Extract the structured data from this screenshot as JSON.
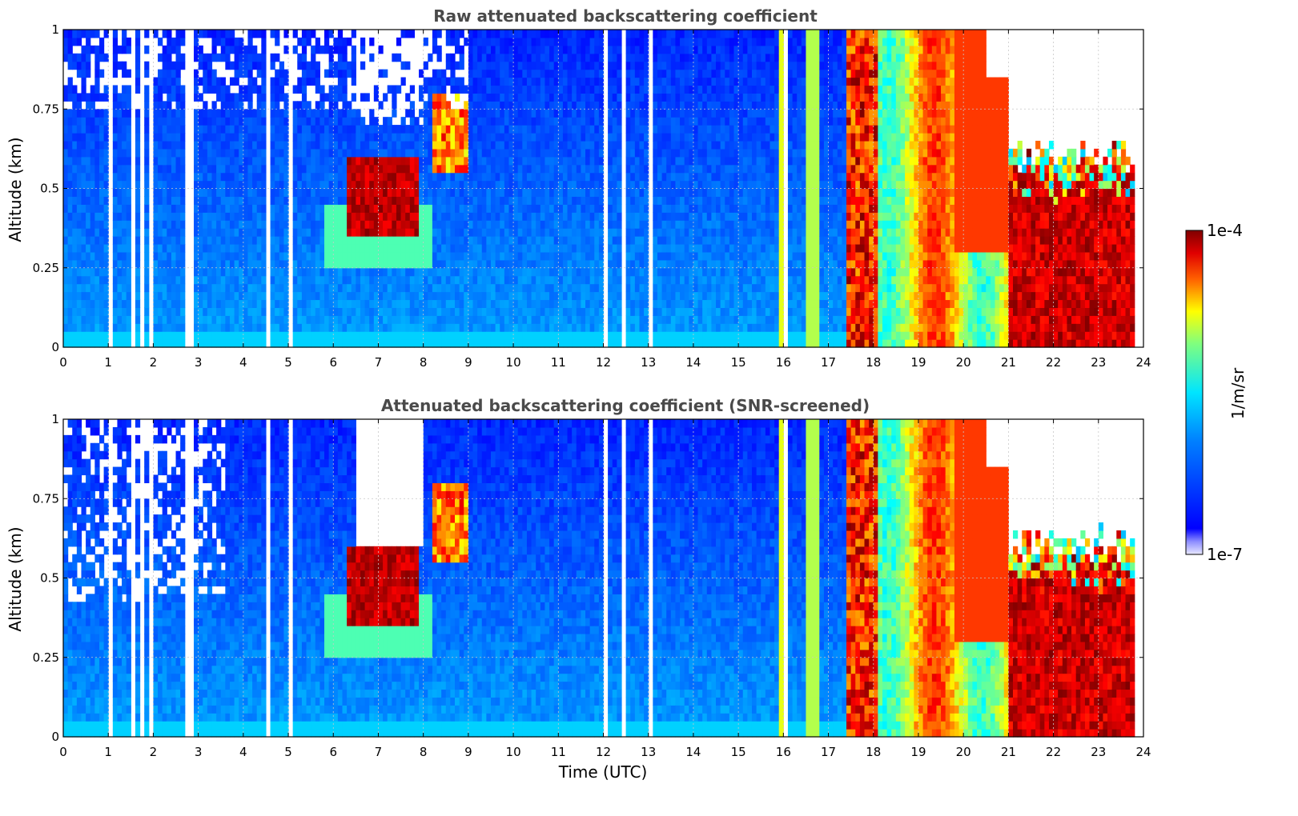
{
  "chart_data": [
    {
      "type": "heatmap",
      "title": "Raw attenuated backscattering coefficient",
      "xlabel": "",
      "ylabel": "Altitude (km)",
      "xlim": [
        0,
        24
      ],
      "ylim": [
        0,
        1
      ],
      "x_ticks": [
        "0",
        "1",
        "2",
        "3",
        "4",
        "5",
        "6",
        "7",
        "8",
        "9",
        "10",
        "11",
        "12",
        "13",
        "14",
        "15",
        "16",
        "17",
        "18",
        "19",
        "20",
        "21",
        "22",
        "23",
        "24"
      ],
      "y_ticks": [
        "0",
        "0.25",
        "0.5",
        "0.75",
        "1"
      ],
      "grid": true,
      "screened": false
    },
    {
      "type": "heatmap",
      "title": "Attenuated backscattering coefficient (SNR-screened)",
      "xlabel": "Time (UTC)",
      "ylabel": "Altitude (km)",
      "xlim": [
        0,
        24
      ],
      "ylim": [
        0,
        1
      ],
      "x_ticks": [
        "0",
        "1",
        "2",
        "3",
        "4",
        "5",
        "6",
        "7",
        "8",
        "9",
        "10",
        "11",
        "12",
        "13",
        "14",
        "15",
        "16",
        "17",
        "18",
        "19",
        "20",
        "21",
        "22",
        "23",
        "24"
      ],
      "y_ticks": [
        "0",
        "0.25",
        "0.5",
        "0.75",
        "1"
      ],
      "grid": true,
      "screened": true
    }
  ],
  "colorbar": {
    "label": "1/m/sr",
    "min_label": "1e-7",
    "max_label": "1e-4",
    "colormap": "jet"
  }
}
